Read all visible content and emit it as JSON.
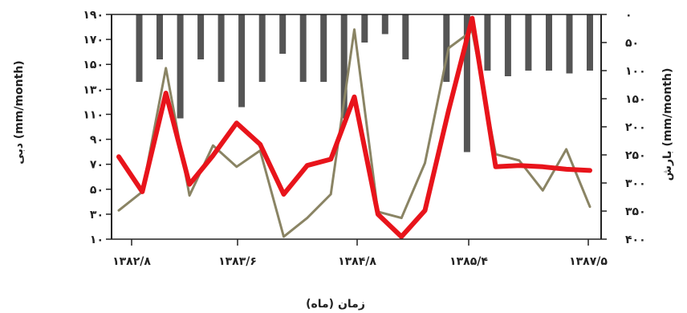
{
  "chart_data": {
    "type": "bar+line",
    "x_ticks": [
      "۱۳۸۲/۸",
      "۱۳۸۳/۶",
      "۱۳۸۴/۸",
      "۱۳۸۵/۴",
      "۱۳۸۷/۵"
    ],
    "xlabel": "زمان (ماه)",
    "ylabel_left": "دبی (mm/month)",
    "ylabel_right": "بارش (mm/month)",
    "ylim_left": [
      10,
      190
    ],
    "ylim_right": [
      400,
      0
    ],
    "left_ticks": [
      "۱۹۰",
      "۱۷۰",
      "۱۵۰",
      "۱۳۰",
      "۱۱۰",
      "۹۰",
      "۷۰",
      "۵۰",
      "۳۰",
      "۱۰"
    ],
    "left_tick_values": [
      190,
      170,
      150,
      130,
      110,
      90,
      70,
      50,
      30,
      10
    ],
    "right_ticks": [
      "۰",
      "۵۰",
      "۱۰۰",
      "۱۵۰",
      "۲۰۰",
      "۲۵۰",
      "۳۰۰",
      "۳۵۰",
      "۴۰۰"
    ],
    "right_tick_values": [
      0,
      50,
      100,
      150,
      200,
      250,
      300,
      350,
      400
    ],
    "grid": false,
    "series": [
      {
        "kind": "bar",
        "axis": "right",
        "color": "#555555",
        "values": [
          0,
          120,
          80,
          185,
          80,
          120,
          165,
          120,
          70,
          120,
          120,
          185,
          50,
          35,
          80,
          0,
          120,
          245,
          100,
          110,
          100,
          100,
          105,
          100
        ]
      },
      {
        "kind": "line",
        "axis": "left",
        "color": "#e8141b",
        "values": [
          76,
          48,
          127,
          54,
          77,
          103,
          86,
          46,
          69,
          74,
          124,
          30,
          12,
          33,
          113,
          187,
          68,
          69,
          68,
          66,
          65
        ]
      },
      {
        "kind": "line",
        "axis": "left",
        "color": "#8a8464",
        "values": [
          33,
          48,
          147,
          45,
          85,
          68,
          81,
          12,
          27,
          46,
          178,
          32,
          27,
          71,
          163,
          177,
          78,
          73,
          49,
          82,
          36
        ]
      }
    ]
  }
}
